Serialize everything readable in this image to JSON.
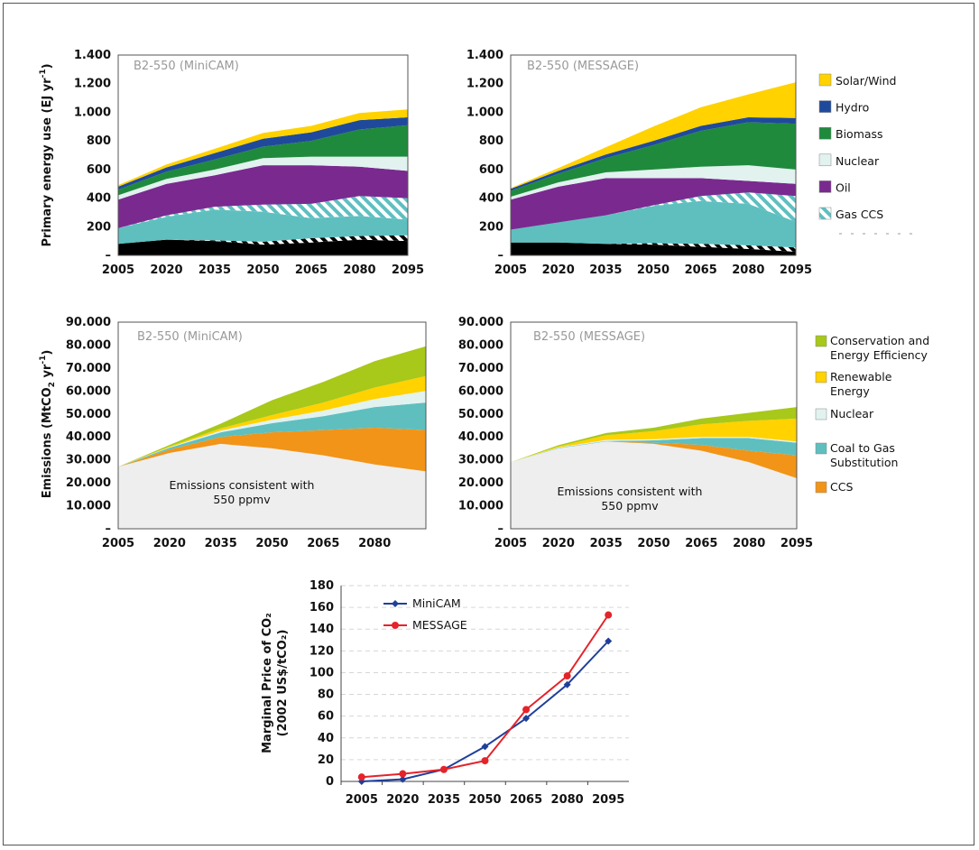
{
  "colors": {
    "solar_wind": "#ffd200",
    "hydro": "#1f4a9c",
    "biomass": "#1f8a3c",
    "nuclear": "#e1f2ef",
    "oil": "#7a2a8f",
    "gas_ccs": "#5fbfc0",
    "gas": "#5fbfbf",
    "coal": "#000000",
    "conservation": "#a8c81a",
    "renewable": "#ffd200",
    "coal_to_gas": "#5fbfbf",
    "ccs": "#f29418",
    "baseline_em": "#eeeeee",
    "minicam": "#1f3f9a",
    "message": "#e4232a"
  },
  "chart_data": [
    {
      "type": "area",
      "name": "energy-minicam",
      "panel_title": "B2-550 (MiniCAM)",
      "ylabel": "Primary energy use (EJ yr",
      "ylabel_sup": "-1",
      "ylabel_end": ")",
      "ylim": [
        0,
        1400
      ],
      "yticks": [
        0,
        200,
        400,
        600,
        800,
        1000,
        1200,
        1400
      ],
      "ytick_labels": [
        "–",
        "200",
        "400",
        "600",
        "800",
        "1.000",
        "1.200",
        "1.400"
      ],
      "x": [
        2005,
        2020,
        2035,
        2050,
        2065,
        2080,
        2095
      ],
      "x_labels": [
        "2005",
        "2020",
        "2035",
        "2050",
        "2065",
        "2080",
        "2095"
      ],
      "stack": [
        {
          "key": "coal",
          "color_key": "coal",
          "pattern": "none",
          "values": [
            80,
            110,
            100,
            75,
            90,
            110,
            100
          ]
        },
        {
          "key": "coal_ccs",
          "color_key": "coal",
          "pattern": "hatch-dark",
          "values": [
            0,
            0,
            5,
            20,
            30,
            25,
            40
          ]
        },
        {
          "key": "gas",
          "color_key": "gas",
          "pattern": "none",
          "values": [
            110,
            160,
            215,
            210,
            140,
            140,
            110
          ]
        },
        {
          "key": "gas_ccs",
          "color_key": "gas_ccs",
          "pattern": "hatch-light",
          "values": [
            0,
            10,
            20,
            50,
            100,
            140,
            150
          ]
        },
        {
          "key": "oil",
          "color_key": "oil",
          "pattern": "none",
          "values": [
            200,
            220,
            220,
            275,
            270,
            205,
            190
          ]
        },
        {
          "key": "nuclear",
          "color_key": "nuclear",
          "pattern": "none",
          "values": [
            30,
            35,
            40,
            50,
            60,
            70,
            100
          ]
        },
        {
          "key": "biomass",
          "color_key": "biomass",
          "pattern": "none",
          "values": [
            40,
            50,
            70,
            80,
            110,
            190,
            220
          ]
        },
        {
          "key": "hydro",
          "color_key": "hydro",
          "pattern": "none",
          "values": [
            20,
            30,
            45,
            55,
            60,
            65,
            55
          ]
        },
        {
          "key": "solar_wind",
          "color_key": "solar_wind",
          "pattern": "none",
          "values": [
            10,
            20,
            30,
            40,
            45,
            50,
            55
          ]
        }
      ]
    },
    {
      "type": "area",
      "name": "energy-message",
      "panel_title": "B2-550 (MESSAGE)",
      "ylim": [
        0,
        1400
      ],
      "yticks": [
        0,
        200,
        400,
        600,
        800,
        1000,
        1200,
        1400
      ],
      "ytick_labels": [
        "–",
        "200",
        "400",
        "600",
        "800",
        "1.000",
        "1.200",
        "1.400"
      ],
      "x": [
        2005,
        2020,
        2035,
        2050,
        2065,
        2080,
        2095
      ],
      "x_labels": [
        "2005",
        "2020",
        "2035",
        "2050",
        "2065",
        "2080",
        "2095"
      ],
      "stack": [
        {
          "key": "coal",
          "color_key": "coal",
          "pattern": "none",
          "values": [
            90,
            90,
            80,
            75,
            60,
            45,
            25
          ]
        },
        {
          "key": "coal_ccs",
          "color_key": "coal",
          "pattern": "hatch-dark",
          "values": [
            0,
            0,
            0,
            10,
            20,
            25,
            30
          ]
        },
        {
          "key": "gas",
          "color_key": "gas",
          "pattern": "none",
          "values": [
            90,
            140,
            200,
            260,
            300,
            290,
            180
          ]
        },
        {
          "key": "gas_ccs",
          "color_key": "gas_ccs",
          "pattern": "hatch-light",
          "values": [
            0,
            0,
            0,
            5,
            35,
            80,
            180
          ]
        },
        {
          "key": "oil",
          "color_key": "oil",
          "pattern": "none",
          "values": [
            210,
            250,
            260,
            190,
            125,
            80,
            85
          ]
        },
        {
          "key": "nuclear",
          "color_key": "nuclear",
          "pattern": "none",
          "values": [
            20,
            30,
            40,
            60,
            80,
            110,
            100
          ]
        },
        {
          "key": "biomass",
          "color_key": "biomass",
          "pattern": "none",
          "values": [
            40,
            60,
            100,
            170,
            250,
            300,
            320
          ]
        },
        {
          "key": "hydro",
          "color_key": "hydro",
          "pattern": "none",
          "values": [
            15,
            20,
            25,
            30,
            35,
            35,
            40
          ]
        },
        {
          "key": "solar_wind",
          "color_key": "solar_wind",
          "pattern": "none",
          "values": [
            5,
            20,
            50,
            100,
            130,
            160,
            250
          ]
        }
      ]
    },
    {
      "type": "area",
      "name": "emissions-minicam",
      "panel_title": "B2-550 (MiniCAM)",
      "ylabel": "Emissions (MtCO",
      "ylabel_sub": "2",
      "ylabel_mid": " yr",
      "ylabel_sup": "-1",
      "ylabel_end": ")",
      "note": [
        "Emissions consistent with",
        "550 ppmv"
      ],
      "ylim": [
        0,
        90000
      ],
      "yticks": [
        0,
        10000,
        20000,
        30000,
        40000,
        50000,
        60000,
        70000,
        80000,
        90000
      ],
      "ytick_labels": [
        "–",
        "10.000",
        "20.000",
        "30.000",
        "40.000",
        "50.000",
        "60.000",
        "70.000",
        "80.000",
        "90.000"
      ],
      "x": [
        2005,
        2020,
        2035,
        2050,
        2065,
        2080,
        2095
      ],
      "x_labels": [
        "2005",
        "2020",
        "2035",
        "2050",
        "2065",
        "2080",
        ""
      ],
      "stack": [
        {
          "key": "baseline_em",
          "color_key": "baseline_em",
          "pattern": "none",
          "values": [
            27000,
            33000,
            37000,
            35000,
            32000,
            28000,
            25000
          ]
        },
        {
          "key": "ccs",
          "color_key": "ccs",
          "pattern": "none",
          "values": [
            0,
            1500,
            3000,
            7000,
            11000,
            16000,
            18000
          ]
        },
        {
          "key": "coal_to_gas",
          "color_key": "coal_to_gas",
          "pattern": "none",
          "values": [
            0,
            800,
            2000,
            4000,
            6000,
            9000,
            12000
          ]
        },
        {
          "key": "nuclear",
          "color_key": "nuclear",
          "pattern": "none",
          "values": [
            0,
            200,
            800,
            1500,
            2500,
            3500,
            5000
          ]
        },
        {
          "key": "renewable",
          "color_key": "renewable",
          "pattern": "none",
          "values": [
            0,
            300,
            1000,
            2000,
            3500,
            5000,
            6500
          ]
        },
        {
          "key": "conservation",
          "color_key": "conservation",
          "pattern": "none",
          "values": [
            0,
            700,
            2000,
            6500,
            9000,
            11500,
            13000
          ]
        }
      ]
    },
    {
      "type": "area",
      "name": "emissions-message",
      "panel_title": "B2-550 (MESSAGE)",
      "note": [
        "Emissions consistent with",
        "550 ppmv"
      ],
      "ylim": [
        0,
        90000
      ],
      "yticks": [
        0,
        10000,
        20000,
        30000,
        40000,
        50000,
        60000,
        70000,
        80000,
        90000
      ],
      "ytick_labels": [
        "–",
        "10.000",
        "20.000",
        "30.000",
        "40.000",
        "50.000",
        "60.000",
        "70.000",
        "80.000",
        "90.000"
      ],
      "x": [
        2005,
        2020,
        2035,
        2050,
        2065,
        2080,
        2095
      ],
      "x_labels": [
        "2005",
        "2020",
        "2035",
        "2050",
        "2065",
        "2080",
        "2095"
      ],
      "stack": [
        {
          "key": "baseline_em",
          "color_key": "baseline_em",
          "pattern": "none",
          "values": [
            29000,
            35000,
            38000,
            37000,
            34000,
            29000,
            22000
          ]
        },
        {
          "key": "ccs",
          "color_key": "ccs",
          "pattern": "none",
          "values": [
            0,
            0,
            0,
            500,
            2500,
            5000,
            10000
          ]
        },
        {
          "key": "coal_to_gas",
          "color_key": "coal_to_gas",
          "pattern": "none",
          "values": [
            0,
            200,
            200,
            1000,
            3000,
            5500,
            5500
          ]
        },
        {
          "key": "nuclear",
          "color_key": "nuclear",
          "pattern": "none",
          "values": [
            0,
            200,
            500,
            500,
            500,
            500,
            500
          ]
        },
        {
          "key": "renewable",
          "color_key": "renewable",
          "pattern": "none",
          "values": [
            0,
            500,
            2000,
            3500,
            5500,
            7000,
            10000
          ]
        },
        {
          "key": "conservation",
          "color_key": "conservation",
          "pattern": "none",
          "values": [
            0,
            500,
            1000,
            1500,
            2500,
            3500,
            5000
          ]
        }
      ]
    },
    {
      "type": "line",
      "name": "carbon-price",
      "ylabel_lines": [
        "Marginal Price of CO₂",
        "(2002 US$/tCO₂)"
      ],
      "ylim": [
        0,
        180
      ],
      "yticks": [
        0,
        20,
        40,
        60,
        80,
        100,
        120,
        140,
        160,
        180
      ],
      "ytick_labels": [
        "0",
        "20",
        "40",
        "60",
        "80",
        "100",
        "120",
        "140",
        "160",
        "180"
      ],
      "x": [
        2005,
        2020,
        2035,
        2050,
        2065,
        2080,
        2095
      ],
      "x_labels": [
        "2005",
        "2020",
        "2035",
        "2050",
        "2065",
        "2080",
        "2095"
      ],
      "series": [
        {
          "name": "MiniCAM",
          "color_key": "minicam",
          "marker": "diamond",
          "values": [
            0,
            2,
            11,
            32,
            58,
            89,
            129
          ]
        },
        {
          "name": "MESSAGE",
          "color_key": "message",
          "marker": "circle",
          "values": [
            4,
            7,
            11,
            19,
            66,
            97,
            153
          ]
        }
      ]
    }
  ],
  "legend_energy": [
    {
      "label": "Solar/Wind",
      "color_key": "solar_wind",
      "pattern": "none"
    },
    {
      "label": "Hydro",
      "color_key": "hydro",
      "pattern": "none"
    },
    {
      "label": "Biomass",
      "color_key": "biomass",
      "pattern": "none"
    },
    {
      "label": "Nuclear",
      "color_key": "nuclear",
      "pattern": "none"
    },
    {
      "label": "Oil",
      "color_key": "oil",
      "pattern": "none"
    },
    {
      "label": "Gas CCS",
      "color_key": "gas_ccs",
      "pattern": "hatch-light"
    }
  ],
  "legend_emissions": [
    {
      "lines": [
        "Conservation and",
        "Energy Efficiency"
      ],
      "color_key": "conservation"
    },
    {
      "lines": [
        "Renewable",
        "Energy"
      ],
      "color_key": "renewable"
    },
    {
      "lines": [
        "Nuclear"
      ],
      "color_key": "nuclear"
    },
    {
      "lines": [
        "Coal to Gas",
        "Substitution"
      ],
      "color_key": "coal_to_gas"
    },
    {
      "lines": [
        "CCS"
      ],
      "color_key": "ccs"
    }
  ]
}
